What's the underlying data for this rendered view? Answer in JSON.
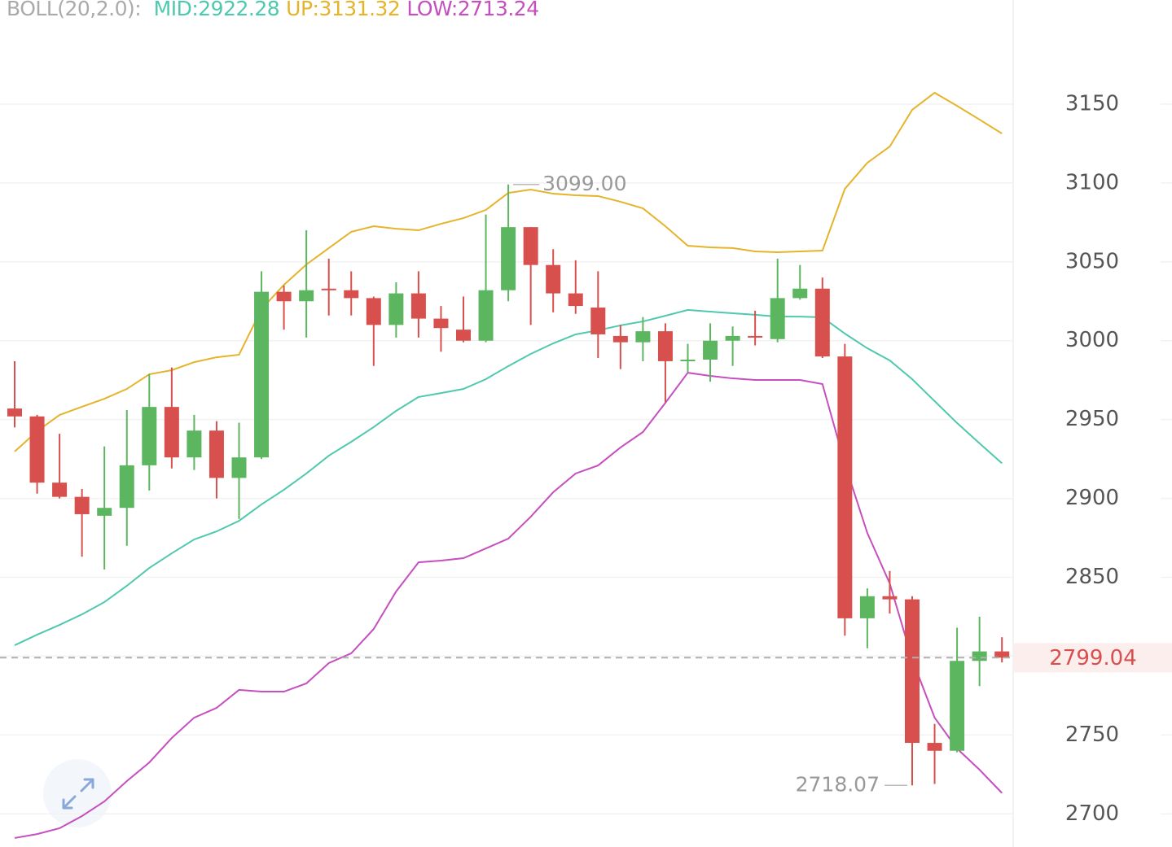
{
  "chart_data": {
    "type": "candlestick",
    "indicator": "BOLL(20,2.0):",
    "ohlc": {
      "up_color": "#5cb660",
      "down_color": "#d8504d",
      "open": [
        2957,
        2952,
        2910,
        2901,
        2889,
        2894,
        2921,
        2958,
        2926,
        2943,
        2913,
        2926,
        3031,
        3025,
        3033,
        3032,
        3027,
        3010,
        3030,
        3014,
        3007,
        3000,
        3032,
        3072,
        3048,
        3030,
        3021,
        3003,
        2999,
        3006,
        2987,
        2988,
        3000,
        3003,
        3001,
        3027,
        3033,
        2990,
        2824,
        2838,
        2836,
        2745,
        2740,
        2797,
        2803
      ],
      "high": [
        2987,
        2953,
        2941,
        2906,
        2933,
        2956,
        2979,
        2983,
        2953,
        2949,
        2948,
        3044,
        3035,
        3070,
        3052,
        3044,
        3028,
        3037,
        3044,
        3022,
        3028,
        3080,
        3099,
        3072,
        3058,
        3051,
        3044,
        3010,
        3015,
        3011,
        2998,
        3011,
        3009,
        3019,
        3052,
        3048,
        3040,
        2998,
        2843,
        2854,
        2838,
        2757,
        2818,
        2825,
        2812
      ],
      "low": [
        2945,
        2903,
        2900,
        2863,
        2855,
        2870,
        2905,
        2919,
        2918,
        2900,
        2887,
        2925,
        3007,
        3002,
        3016,
        3016,
        2984,
        3002,
        3002,
        2993,
        2999,
        2999,
        3025,
        3010,
        3018,
        3017,
        2989,
        2982,
        2987,
        2961,
        2980,
        2974,
        2984,
        2997,
        2999,
        3026,
        2989,
        2813,
        2805,
        2827,
        2718.07,
        2719,
        2739,
        2781,
        2796
      ],
      "close": [
        2952,
        2910,
        2901,
        2890,
        2894,
        2921,
        2958,
        2926,
        2943,
        2913,
        2926,
        3031,
        3025,
        3032,
        3032,
        3027,
        3010,
        3030,
        3014,
        3008,
        3000,
        3032,
        3072,
        3048,
        3030,
        3022,
        3004,
        2999,
        3006,
        2987,
        2988,
        3000,
        3003,
        3002,
        3027,
        3033,
        2990,
        2824,
        2838,
        2836,
        2745,
        2740,
        2797,
        2803,
        2799.04
      ]
    },
    "series": [
      {
        "name": "MID:2922.28",
        "color": "#4ec9ae",
        "values": [
          2806.9,
          2813.6,
          2819.8,
          2826.5,
          2834.3,
          2844.6,
          2855.9,
          2865.2,
          2874.0,
          2879.1,
          2885.8,
          2896.2,
          2905.5,
          2915.8,
          2927.1,
          2935.9,
          2945.2,
          2955.5,
          2964.3,
          2966.8,
          2969.4,
          2975.6,
          2983.9,
          2991.6,
          2998.3,
          3004.0,
          3006.6,
          3009.7,
          3012.2,
          3015.8,
          3019.5,
          3018.4,
          3017.4,
          3016.4,
          3015.3,
          3015.3,
          3014.8,
          3004.5,
          2995.2,
          2987.5,
          2975.6,
          2961.7,
          2947.8,
          2934.9,
          2922.28
        ]
      },
      {
        "name": "UP:3131.32",
        "color": "#e5b42a",
        "values": [
          2929.7,
          2942.6,
          2952.9,
          2958.1,
          2963.2,
          2969.4,
          2978.7,
          2981.3,
          2986.4,
          2989.5,
          2991.1,
          3020.0,
          3035.4,
          3048.3,
          3058.7,
          3069.0,
          3072.6,
          3071.0,
          3070.0,
          3074.1,
          3077.7,
          3082.9,
          3093.7,
          3095.8,
          3093.2,
          3092.2,
          3091.7,
          3088.1,
          3083.9,
          3072.6,
          3060.2,
          3059.2,
          3058.7,
          3056.6,
          3056.1,
          3056.6,
          3057.1,
          3096.3,
          3112.8,
          3123.1,
          3146.4,
          3157.2,
          3148.9,
          3140.2,
          3131.32
        ]
      },
      {
        "name": "LOW:2713.24",
        "color": "#c64fbf",
        "values": [
          2684.7,
          2687.2,
          2690.9,
          2698.6,
          2707.9,
          2720.8,
          2732.6,
          2748.1,
          2761.0,
          2767.2,
          2778.6,
          2777.5,
          2777.5,
          2782.7,
          2795.6,
          2801.8,
          2817.2,
          2841.0,
          2859.5,
          2860.6,
          2862.1,
          2868.3,
          2874.5,
          2888.4,
          2903.9,
          2915.8,
          2920.9,
          2932.3,
          2942.1,
          2960.6,
          2979.7,
          2977.7,
          2976.1,
          2975.1,
          2975.1,
          2975.1,
          2972.5,
          2921.9,
          2878.1,
          2846.1,
          2798.1,
          2761.0,
          2741.4,
          2728.0,
          2713.24
        ]
      }
    ],
    "annotations": [
      {
        "value": 3099,
        "label": "3099.00"
      },
      {
        "value": 2718.07,
        "label": "2718.07"
      }
    ],
    "ylim": [
      2679,
      3216
    ],
    "yticks": [
      2700,
      2750,
      2800,
      2850,
      2900,
      2950,
      3000,
      3050,
      3100,
      3150
    ],
    "grid": true
  }
}
